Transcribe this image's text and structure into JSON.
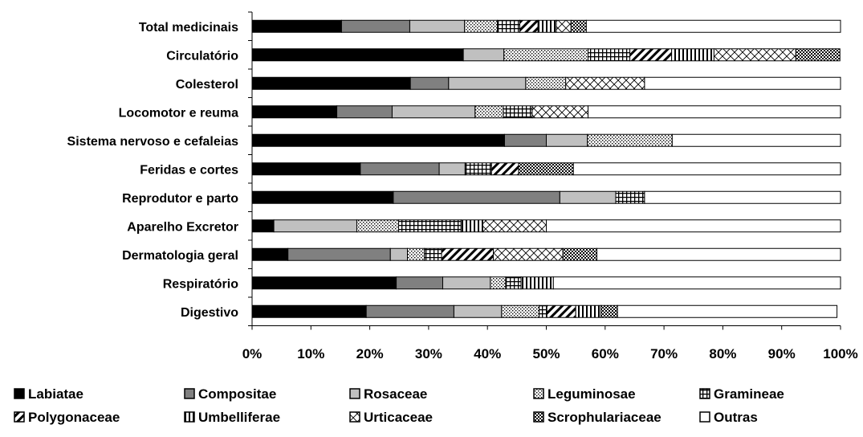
{
  "chart_data": {
    "type": "bar",
    "orientation": "horizontal",
    "stacked": "percent",
    "categories": [
      "Total medicinais",
      "Circulatório",
      "Colesterol",
      "Locomotor e reuma",
      "Sistema nervoso e cefaleias",
      "Feridas e cortes",
      "Reprodutor e parto",
      "Aparelho Excretor",
      "Dermatologia geral",
      "Respiratório",
      "Digestivo"
    ],
    "series": [
      {
        "name": "Labiatae",
        "pattern": "solid-black",
        "values": [
          15.2,
          35.9,
          26.9,
          14.4,
          42.9,
          18.4,
          24.0,
          3.7,
          6.1,
          24.5,
          19.4
        ]
      },
      {
        "name": "Compositae",
        "pattern": "solid-gray",
        "values": [
          11.6,
          0,
          6.5,
          9.4,
          7.1,
          13.4,
          28.3,
          0,
          17.4,
          7.9,
          14.9
        ]
      },
      {
        "name": "Rosaceae",
        "pattern": "light-gray",
        "values": [
          9.3,
          6.9,
          13.1,
          14.1,
          7.0,
          4.4,
          9.5,
          14.1,
          2.9,
          8.1,
          8.1
        ]
      },
      {
        "name": "Leguminosae",
        "pattern": "dots",
        "values": [
          5.6,
          14.3,
          6.8,
          4.8,
          14.4,
          0,
          0,
          7.1,
          2.9,
          2.6,
          6.4
        ]
      },
      {
        "name": "Gramineae",
        "pattern": "grid",
        "values": [
          3.8,
          7.1,
          0,
          4.9,
          0,
          4.5,
          4.9,
          10.6,
          2.9,
          2.6,
          1.3
        ]
      },
      {
        "name": "Polygonaceae",
        "pattern": "diagonal",
        "values": [
          3.1,
          7.1,
          0,
          0,
          0,
          4.6,
          0,
          0,
          8.8,
          0,
          4.9
        ]
      },
      {
        "name": "Umbelliferae",
        "pattern": "vertical",
        "values": [
          3.1,
          7.2,
          0,
          0,
          0,
          0,
          0,
          3.7,
          0,
          5.5,
          4.3
        ]
      },
      {
        "name": "Urticaceae",
        "pattern": "crosshatch",
        "values": [
          2.5,
          13.9,
          13.4,
          9.5,
          0,
          0,
          0,
          10.8,
          11.8,
          0,
          0
        ]
      },
      {
        "name": "Scrophulariaceae",
        "pattern": "checker",
        "values": [
          2.6,
          7.5,
          0,
          0,
          0,
          9.3,
          0,
          0,
          5.8,
          0,
          2.8
        ]
      },
      {
        "name": "Outras",
        "pattern": "white",
        "values": [
          43.2,
          0,
          33.3,
          42.9,
          28.6,
          45.4,
          33.3,
          50.0,
          41.4,
          48.8,
          37.3
        ]
      }
    ],
    "x_ticks": [
      "0%",
      "10%",
      "20%",
      "30%",
      "40%",
      "50%",
      "60%",
      "70%",
      "80%",
      "90%",
      "100%"
    ],
    "xlim": [
      0,
      100
    ],
    "grid": false,
    "legend_position": "bottom"
  }
}
